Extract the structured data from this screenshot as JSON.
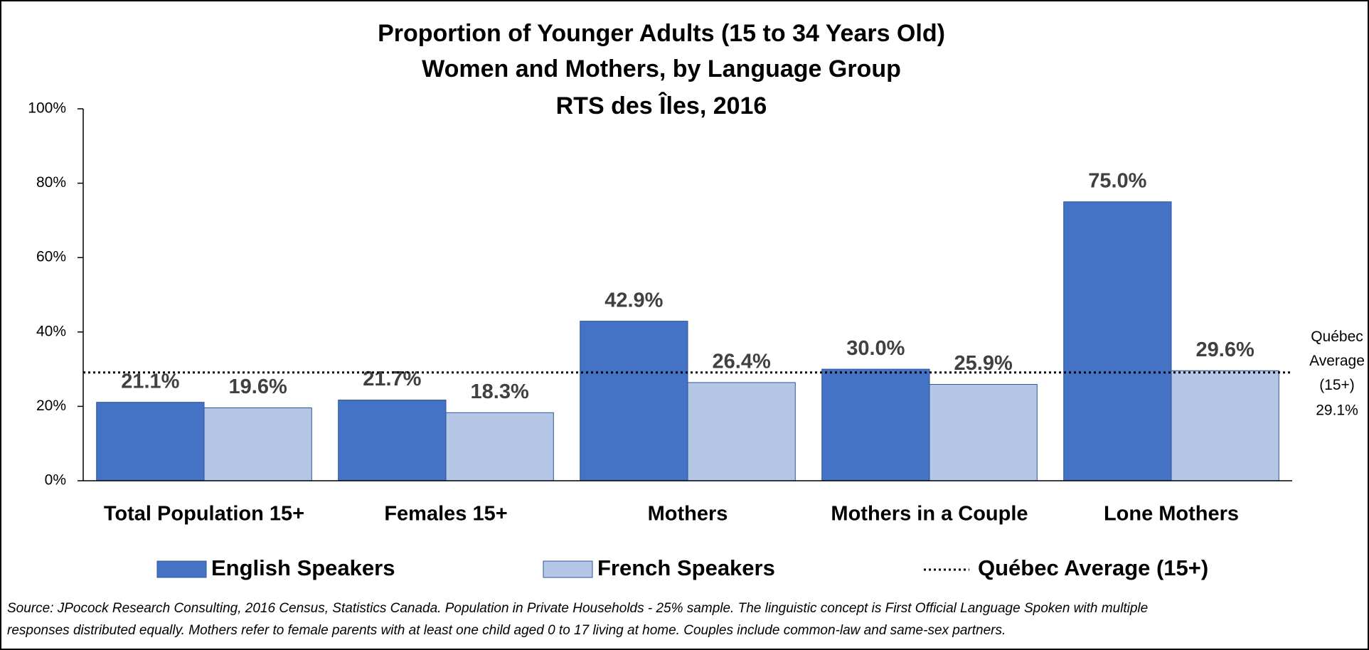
{
  "chart_data": {
    "type": "bar",
    "title": [
      "Proportion of Younger Adults (15 to 34 Years Old)",
      "Women and Mothers, by Language Group",
      "RTS des Îles, 2016"
    ],
    "categories": [
      "Total Population 15+",
      "Females 15+",
      "Mothers",
      "Mothers in a Couple",
      "Lone Mothers"
    ],
    "series": [
      {
        "name": "English Speakers",
        "color": "#4472c4",
        "values": [
          21.1,
          21.7,
          42.9,
          30.0,
          75.0
        ],
        "value_labels": [
          "21.1%",
          "21.7%",
          "42.9%",
          "30.0%",
          "75.0%"
        ]
      },
      {
        "name": "French Speakers",
        "color": "#b4c7e7",
        "values": [
          19.6,
          18.3,
          26.4,
          25.9,
          29.6
        ],
        "value_labels": [
          "19.6%",
          "18.3%",
          "26.4%",
          "25.9%",
          "29.6%"
        ]
      }
    ],
    "reference_line": {
      "name": "Québec Average (15+)",
      "value": 29.1,
      "label": "29.1%",
      "color": "#000000"
    },
    "ylim": [
      0,
      100
    ],
    "yticks": [
      {
        "value": 0,
        "label": "0%"
      },
      {
        "value": 20,
        "label": "20%"
      },
      {
        "value": 40,
        "label": "40%"
      },
      {
        "value": 60,
        "label": "60%"
      },
      {
        "value": 80,
        "label": "80%"
      },
      {
        "value": 100,
        "label": "100%"
      }
    ],
    "source": [
      "Source: JPocock Research Consulting, 2016 Census, Statistics Canada. Population in Private Households - 25% sample. The linguistic concept is First Official Language Spoken with multiple",
      "responses distributed equally. Mothers refer to female parents with at least one child aged 0 to 17 living at home. Couples include common-law and same-sex partners."
    ]
  }
}
